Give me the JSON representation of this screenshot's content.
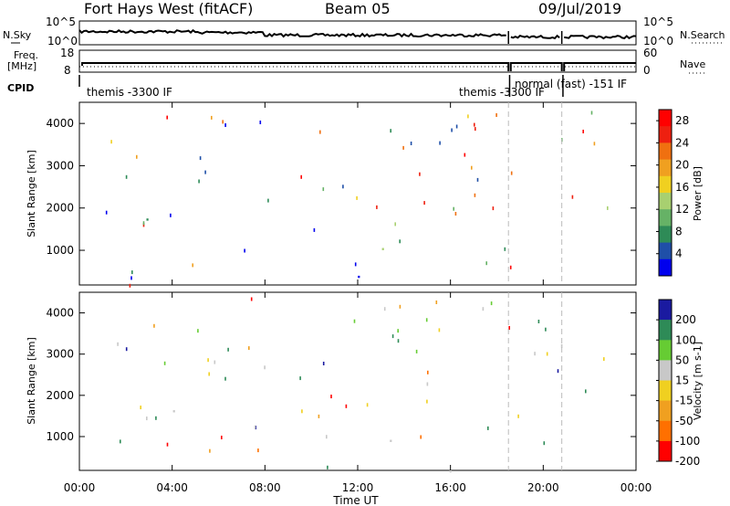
{
  "header": {
    "radar": "Fort Hays West (fitACF)",
    "beam": "Beam 05",
    "date": "09/Jul/2019"
  },
  "nsky_panel": {
    "left_label": "N.Sky",
    "left_ticks": [
      "10^5",
      "10^0"
    ],
    "right_label": "N.Search",
    "right_ticks": [
      "10^5",
      "10^0"
    ]
  },
  "freq_panel": {
    "left_label": "Freq.",
    "left_unit": "[MHz]",
    "left_ticks": [
      "18",
      "8"
    ],
    "right_label": "Nave",
    "right_ticks": [
      "60",
      "0"
    ]
  },
  "cpid_panel": {
    "label": "CPID",
    "modes": [
      {
        "name": "themis -3300 IF",
        "start_hour": 0,
        "end_hour": 18.5
      },
      {
        "name": "themis -3300 IF",
        "start_hour": 18.5,
        "end_hour": 18.6
      },
      {
        "name": "normal (fast) -151 IF",
        "start_hour": 18.6,
        "end_hour": 24
      }
    ]
  },
  "colors": {
    "power": [
      "#0000ee",
      "#1f4fa8",
      "#2e8b57",
      "#66b266",
      "#a8d070",
      "#f0d020",
      "#f0a020",
      "#f07010",
      "#ee2010",
      "#ff0000"
    ],
    "velocity": [
      "#1a1aa0",
      "#2e8b57",
      "#66cc33",
      "#c8c8c8",
      "#f0d020",
      "#f0a020",
      "#ff7000",
      "#ff0000"
    ]
  },
  "chart_data": [
    {
      "type": "heatmap",
      "title": "",
      "xlabel": "",
      "ylabel": "Slant Range [km]",
      "x_ticks": [
        "00:00",
        "04:00",
        "08:00",
        "12:00",
        "16:00",
        "20:00",
        "00:00"
      ],
      "xlim": [
        0,
        24
      ],
      "y_ticks": [
        "1000",
        "2000",
        "3000",
        "4000"
      ],
      "ylim": [
        180,
        4500
      ],
      "vertical_markers_hours": [
        18.5,
        20.8
      ],
      "colorbar": {
        "label": "Power [dB]",
        "ticks": [
          "4",
          "8",
          "12",
          "16",
          "20",
          "24",
          "28"
        ],
        "range": [
          0,
          30
        ]
      },
      "regions": [
        {
          "x": [
            0.3,
            4.6
          ],
          "y": [
            1600,
            2500
          ],
          "value": 13
        },
        {
          "x": [
            2.0,
            4.5
          ],
          "y": [
            200,
            700
          ],
          "value": 12
        },
        {
          "x": [
            11.0,
            18.5
          ],
          "y": [
            700,
            1250
          ],
          "value": 12
        },
        {
          "x": [
            12.5,
            15.0
          ],
          "y": [
            400,
            900
          ],
          "value": 21
        },
        {
          "x": [
            14.5,
            15.8
          ],
          "y": [
            300,
            600
          ],
          "value": 28
        },
        {
          "x": [
            18.7,
            20.6
          ],
          "y": [
            600,
            1200
          ],
          "value": 15
        },
        {
          "x": [
            21.0,
            24.0
          ],
          "y": [
            700,
            1200
          ],
          "value": 9
        },
        {
          "x": [
            6.0,
            18.5
          ],
          "y": [
            180,
            400
          ],
          "value": 8
        }
      ]
    },
    {
      "type": "heatmap",
      "title": "",
      "xlabel": "Time UT",
      "ylabel": "Slant Range [km]",
      "x_ticks": [
        "00:00",
        "04:00",
        "08:00",
        "12:00",
        "16:00",
        "20:00",
        "00:00"
      ],
      "xlim": [
        0,
        24
      ],
      "y_ticks": [
        "1000",
        "2000",
        "3000",
        "4000"
      ],
      "ylim": [
        180,
        4500
      ],
      "vertical_markers_hours": [
        18.5,
        20.8
      ],
      "colorbar": {
        "label": "Velocity [m s-1]",
        "ticks": [
          "200",
          "100",
          "50",
          "15",
          "-15",
          "-50",
          "-100",
          "-200"
        ],
        "range": [
          -250,
          250
        ]
      },
      "regions": [
        {
          "x": [
            0.3,
            4.6
          ],
          "y": [
            1600,
            2500
          ],
          "value": 0
        },
        {
          "x": [
            2.0,
            4.5
          ],
          "y": [
            200,
            700
          ],
          "value": -60
        },
        {
          "x": [
            11.0,
            18.5
          ],
          "y": [
            700,
            1250
          ],
          "value": 0
        },
        {
          "x": [
            18.7,
            20.6
          ],
          "y": [
            600,
            1200
          ],
          "value": 0
        },
        {
          "x": [
            21.0,
            24.0
          ],
          "y": [
            700,
            1200
          ],
          "value": 0
        },
        {
          "x": [
            6.0,
            18.5
          ],
          "y": [
            180,
            400
          ],
          "value": 30
        }
      ]
    }
  ]
}
